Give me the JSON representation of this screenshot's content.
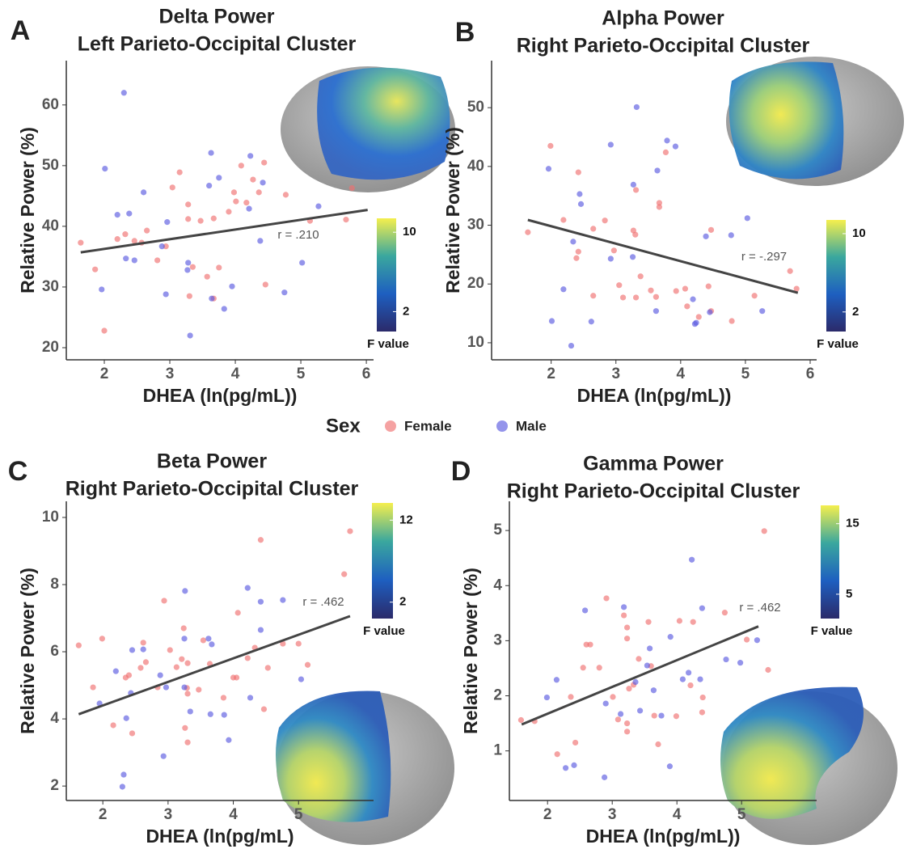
{
  "legend_title": "Sex",
  "chart_data": [
    {
      "type": "scatter",
      "panel": "A",
      "title": "Delta Power",
      "subtitle": "Left Parieto-Occipital Cluster",
      "x_label": "DHEA (ln(pg/mL))",
      "y_label": "Relative Power (%)",
      "xlim": [
        1.42,
        6.11
      ],
      "ylim": [
        18,
        67.3
      ],
      "xticks": [
        2,
        3,
        4,
        5,
        6
      ],
      "yticks": [
        20,
        30,
        40,
        50,
        60
      ],
      "series": [
        {
          "name": "Female",
          "color": "#f07070",
          "x": [
            1.64,
            1.86,
            2.0,
            2.2,
            2.32,
            2.46,
            2.57,
            2.65,
            2.81,
            2.94,
            3.04,
            3.15,
            3.28,
            3.28,
            3.3,
            3.35,
            3.47,
            3.57,
            3.67,
            3.67,
            3.75,
            3.9,
            3.98,
            4.01,
            4.09,
            4.17,
            4.27,
            4.36,
            4.44,
            4.46,
            4.77,
            5.14,
            5.69,
            5.78
          ],
          "values": [
            37.3,
            32.9,
            22.8,
            37.9,
            38.7,
            37.6,
            37.3,
            39.3,
            34.4,
            36.7,
            46.4,
            48.9,
            43.6,
            41.2,
            28.5,
            33.3,
            40.9,
            31.7,
            28.1,
            41.3,
            33.2,
            42.4,
            45.6,
            44.1,
            50.0,
            43.9,
            47.7,
            45.6,
            50.5,
            30.4,
            45.2,
            40.9,
            41.1,
            46.3
          ]
        },
        {
          "name": "Male",
          "color": "#5a5ae0",
          "x": [
            1.96,
            2.01,
            2.2,
            2.3,
            2.33,
            2.38,
            2.46,
            2.6,
            2.88,
            2.94,
            2.96,
            3.27,
            3.28,
            3.31,
            3.6,
            3.63,
            3.64,
            3.75,
            3.83,
            3.95,
            4.23,
            4.21,
            4.42,
            4.38,
            4.75,
            5.02,
            5.27
          ],
          "values": [
            29.6,
            49.5,
            41.9,
            62,
            34.7,
            42.1,
            34.4,
            45.6,
            36.7,
            28.8,
            40.7,
            32.8,
            34,
            22,
            46.7,
            52.1,
            28.1,
            48,
            26.4,
            30.1,
            51.6,
            42.9,
            47.2,
            37.6,
            29.1,
            34,
            43.3
          ]
        }
      ],
      "fit": {
        "x": [
          1.64,
          6.02
        ],
        "y": [
          35.7,
          42.7
        ]
      },
      "fit_color": "#444",
      "annotation": "r = .210",
      "colorbar": {
        "label": "F value",
        "lim": [
          0,
          11.4
        ],
        "ticks": [
          2,
          10
        ],
        "colors": [
          "#2b2a6a",
          "#1e5fc0",
          "#3aa79e",
          "#f5ef4d"
        ]
      }
    },
    {
      "type": "scatter",
      "panel": "B",
      "title": "Alpha Power",
      "subtitle": "Right Parieto-Occipital Cluster",
      "x_label": "DHEA (ln(pg/mL))",
      "y_label": "Relative Power (%)",
      "xlim": [
        1.08,
        6.1
      ],
      "ylim": [
        7.1,
        58
      ],
      "xticks": [
        2,
        3,
        4,
        5,
        6
      ],
      "yticks": [
        10,
        20,
        30,
        40,
        50
      ],
      "series": [
        {
          "name": "Female",
          "color": "#f07070",
          "x": [
            1.64,
            1.99,
            2.19,
            2.42,
            2.39,
            2.42,
            2.65,
            2.65,
            2.83,
            2.97,
            3.05,
            3.11,
            3.27,
            3.3,
            3.31,
            3.31,
            3.38,
            3.54,
            3.62,
            3.67,
            3.67,
            3.77,
            3.93,
            4.07,
            4.1,
            4.28,
            4.43,
            4.47,
            4.47,
            4.79,
            5.14,
            5.69,
            5.79
          ],
          "values": [
            28.8,
            43.5,
            30.9,
            39,
            24.4,
            25.5,
            29.4,
            18,
            30.8,
            25.7,
            19.8,
            17.7,
            29.1,
            28.4,
            17.7,
            36,
            21.3,
            18.9,
            17.8,
            33.1,
            33.8,
            42.4,
            18.8,
            19.2,
            16.2,
            14.4,
            19.6,
            15.4,
            29.2,
            13.7,
            18,
            22.2,
            19.2
          ]
        },
        {
          "name": "Male",
          "color": "#5a5ae0",
          "x": [
            1.96,
            2.01,
            2.19,
            2.31,
            2.34,
            2.44,
            2.46,
            2.62,
            2.92,
            2.92,
            3.27,
            3.32,
            3.26,
            3.62,
            3.64,
            3.79,
            3.92,
            4.19,
            4.22,
            4.24,
            4.39,
            4.45,
            4.78,
            5.03,
            5.26
          ],
          "values": [
            39.6,
            13.7,
            19.1,
            9.5,
            27.2,
            35.3,
            33.6,
            13.6,
            24.3,
            43.7,
            36.9,
            50.1,
            24.6,
            15.4,
            39.3,
            44.4,
            43.4,
            17.4,
            13.2,
            13.4,
            28.1,
            15.2,
            28.3,
            31.2,
            15.4
          ]
        }
      ],
      "fit": {
        "x": [
          1.64,
          5.81
        ],
        "y": [
          30.9,
          18.5
        ]
      },
      "fit_color": "#444",
      "annotation": "r = -.297",
      "colorbar": {
        "label": "F value",
        "lim": [
          0,
          11.4
        ],
        "ticks": [
          2,
          10
        ],
        "colors": [
          "#2b2a6a",
          "#1e5fc0",
          "#3aa79e",
          "#f5ef4d"
        ]
      }
    },
    {
      "type": "scatter",
      "panel": "C",
      "title": "Beta Power",
      "subtitle": "Right Parieto-Occipital Cluster",
      "x_label": "DHEA (ln(pg/mL)",
      "y_label": "Relative Power (%)",
      "xlim": [
        1.44,
        6.15
      ],
      "ylim": [
        1.57,
        10.48
      ],
      "xticks": [
        2,
        3,
        4,
        5
      ],
      "yticks": [
        2,
        4,
        6,
        8,
        10
      ],
      "series": [
        {
          "name": "Female",
          "color": "#f07070",
          "x": [
            1.63,
            1.85,
            1.99,
            2.16,
            2.35,
            2.4,
            2.45,
            2.58,
            2.62,
            2.66,
            2.84,
            2.94,
            3.03,
            3.13,
            3.21,
            3.24,
            3.26,
            3.29,
            3.3,
            3.3,
            3.3,
            3.47,
            3.54,
            3.64,
            3.85,
            4.0,
            4.05,
            4.07,
            4.22,
            4.33,
            4.42,
            4.47,
            4.53,
            4.76,
            5.0,
            5.14,
            5.7,
            5.79
          ],
          "values": [
            6.19,
            4.94,
            6.39,
            3.81,
            5.23,
            5.3,
            3.57,
            5.52,
            6.27,
            5.69,
            4.94,
            7.52,
            6.05,
            5.54,
            5.78,
            6.7,
            3.73,
            4.92,
            4.75,
            3.3,
            5.66,
            4.87,
            6.34,
            5.64,
            4.63,
            5.23,
            5.23,
            7.16,
            5.81,
            6.12,
            9.33,
            4.29,
            5.52,
            6.24,
            6.24,
            5.61,
            8.31,
            9.59
          ]
        },
        {
          "name": "Male",
          "color": "#5a5ae0",
          "x": [
            1.95,
            2.2,
            2.45,
            2.43,
            2.62,
            2.88,
            2.93,
            2.97,
            3.25,
            3.25,
            3.26,
            3.34,
            3.62,
            3.65,
            3.67,
            3.86,
            3.93,
            4.22,
            4.26,
            4.42,
            4.42,
            4.76,
            5.04,
            2.36,
            2.32,
            2.3
          ],
          "values": [
            4.46,
            5.42,
            6.05,
            4.77,
            6.07,
            5.3,
            2.89,
            4.94,
            4.94,
            6.39,
            7.81,
            4.22,
            6.39,
            4.14,
            6.22,
            4.12,
            3.37,
            7.9,
            4.63,
            7.49,
            6.65,
            7.54,
            5.18,
            4.02,
            2.34,
            1.98
          ]
        }
      ],
      "fit": {
        "x": [
          1.63,
          5.79
        ],
        "y": [
          4.14,
          7.06
        ]
      },
      "fit_color": "#444",
      "annotation": "r = .462",
      "colorbar": {
        "label": "F value",
        "lim": [
          0,
          14.1
        ],
        "ticks": [
          2,
          12
        ],
        "colors": [
          "#2b2a6a",
          "#1e5fc0",
          "#3aa79e",
          "#f5ef4d"
        ]
      }
    },
    {
      "type": "scatter",
      "panel": "D",
      "title": "Gamma Power",
      "subtitle": "Right Parieto-Occipital Cluster",
      "x_label": "DHEA (ln(pg/mL))",
      "y_label": "Relative Power (%)",
      "xlim": [
        1.41,
        6.16
      ],
      "ylim": [
        0.1,
        5.53
      ],
      "xticks": [
        2,
        3,
        4,
        5
      ],
      "yticks": [
        1,
        2,
        3,
        4,
        5
      ],
      "series": [
        {
          "name": "Female",
          "color": "#f07070",
          "x": [
            1.59,
            1.8,
            2.15,
            2.36,
            2.43,
            2.55,
            2.6,
            2.66,
            2.8,
            2.91,
            3.01,
            3.09,
            3.18,
            3.23,
            3.23,
            3.23,
            3.23,
            3.26,
            3.33,
            3.41,
            3.56,
            3.6,
            3.65,
            3.71,
            3.99,
            4.04,
            4.21,
            4.25,
            4.39,
            4.4,
            4.74,
            5.08,
            5.35,
            5.41
          ],
          "values": [
            1.56,
            1.54,
            0.94,
            1.98,
            1.15,
            2.51,
            2.93,
            2.93,
            2.51,
            3.77,
            1.98,
            1.57,
            3.46,
            3.24,
            3.04,
            1.5,
            1.35,
            2.13,
            2.2,
            2.67,
            3.34,
            2.54,
            1.64,
            1.12,
            1.63,
            3.36,
            2.19,
            3.34,
            1.7,
            1.97,
            3.51,
            3.02,
            4.99,
            2.47
          ]
        },
        {
          "name": "Male",
          "color": "#5a5ae0",
          "x": [
            1.99,
            2.14,
            2.28,
            2.41,
            2.58,
            2.88,
            2.9,
            3.13,
            3.18,
            3.36,
            3.43,
            3.54,
            3.58,
            3.64,
            3.76,
            3.89,
            3.9,
            4.09,
            4.18,
            4.23,
            4.36,
            4.39,
            4.76,
            4.98,
            5.24
          ],
          "values": [
            1.97,
            2.29,
            0.69,
            0.74,
            3.55,
            0.52,
            1.86,
            1.67,
            3.61,
            2.25,
            1.73,
            2.55,
            2.86,
            2.1,
            1.64,
            0.72,
            3.07,
            2.3,
            2.42,
            4.47,
            2.3,
            3.59,
            2.66,
            2.6,
            3.01
          ]
        }
      ],
      "fit": {
        "x": [
          1.6,
          5.26
        ],
        "y": [
          1.48,
          3.26
        ]
      },
      "fit_color": "#444",
      "annotation": "r = .462",
      "colorbar": {
        "label": "F value",
        "lim": [
          1.55,
          17.6
        ],
        "ticks": [
          5,
          15
        ],
        "colors": [
          "#2b2a6a",
          "#1e5fc0",
          "#3aa79e",
          "#f5ef4d"
        ]
      }
    }
  ]
}
